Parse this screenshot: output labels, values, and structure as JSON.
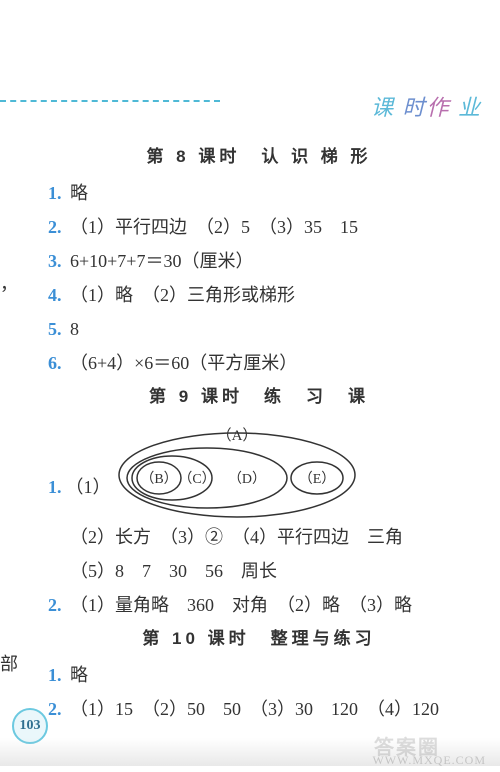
{
  "header": {
    "tag_html": "<span style='color:#5cb9d8'>课</span> <span style='color:#6d8fcf'>时</span><span style='color:#b86fae'>作</span> <span style='color:#5cb9d8'>业</span>"
  },
  "left_edge_1": "，",
  "left_edge_2": "部",
  "page_number": "103",
  "watermark1": "答案圈",
  "watermark2": "WWW.MXQE.COM",
  "sections": [
    {
      "title": "第 8 课时　认 识 梯 形",
      "lines": [
        {
          "num": "1.",
          "text": "略"
        },
        {
          "num": "2.",
          "text": "（1）平行四边　（2）5　（3）35　15"
        },
        {
          "num": "3.",
          "text": "6+10+7+7＝30（厘米）"
        },
        {
          "num": "4.",
          "text": "（1）略　（2）三角形或梯形"
        },
        {
          "num": "5.",
          "text": "8"
        },
        {
          "num": "6.",
          "text": "（6+4）×6＝60（平方厘米）"
        }
      ]
    },
    {
      "title": "第 9 课时　练　习　课",
      "diagram": {
        "labels": {
          "A": "（A）",
          "B": "（B）",
          "C": "（C）",
          "D": "（D）",
          "E": "（E）"
        },
        "prefix": "1.",
        "prefix_sub": "（1）"
      },
      "lines_after": [
        {
          "text": "（2）长方　（3）②　（4）平行四边　三角"
        },
        {
          "text": "（5）8　7　30　56　周长"
        },
        {
          "num": "2.",
          "text": "（1）量角略　360　对角　（2）略　（3）略"
        }
      ]
    },
    {
      "title": "第 10 课时　整理与练习",
      "lines": [
        {
          "num": "1.",
          "text": "略"
        },
        {
          "num": "2.",
          "text": "（1）15　（2）50　50　（3）30　120　（4）120"
        }
      ]
    }
  ],
  "colors": {
    "accent": "#5cb9d8",
    "num": "#3b8fd6",
    "text": "#333333",
    "bg": "#ffffff"
  }
}
